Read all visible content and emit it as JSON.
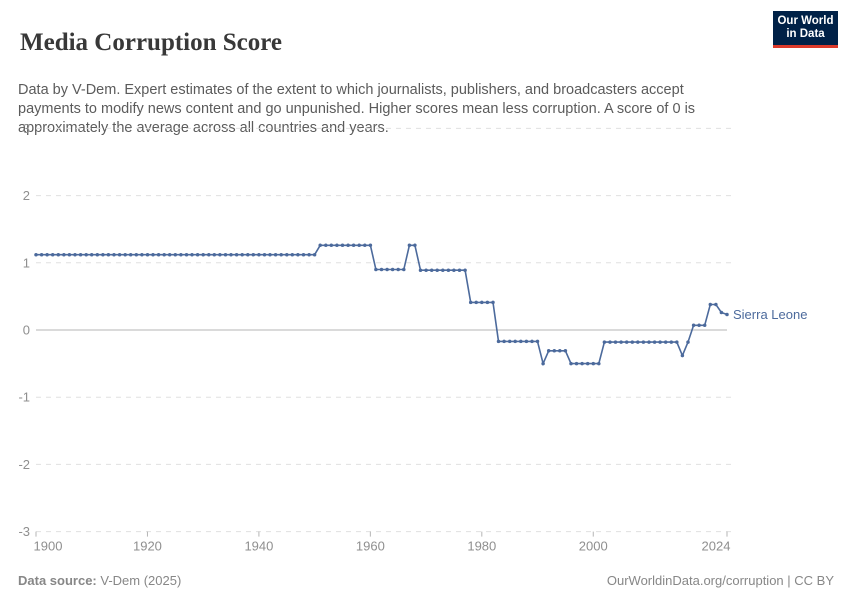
{
  "header": {
    "title": "Media Corruption Score",
    "subtitle": "Data by V-Dem. Expert estimates of the extent to which journalists, publishers, and broadcasters accept payments to modify news content and go unpunished. Higher scores mean less corruption. A score of 0 is approximately the average across all countries and years.",
    "logo_line1": "Our World",
    "logo_line2": "in Data"
  },
  "chart_data": {
    "type": "line",
    "title": "Media Corruption Score",
    "xlabel": "",
    "ylabel": "",
    "ylim": [
      -3,
      3
    ],
    "xlim": [
      1900,
      2024
    ],
    "yticks": [
      3,
      2,
      1,
      0,
      -1,
      -2,
      -3
    ],
    "xticks": [
      1900,
      1920,
      1940,
      1960,
      1980,
      2000,
      2024
    ],
    "grid": "dashed-horizontal",
    "legend_position": "end-of-line",
    "series": [
      {
        "name": "Sierra Leone",
        "start_year": 1900,
        "end_year": 2024,
        "values": [
          1.12,
          1.12,
          1.12,
          1.12,
          1.12,
          1.12,
          1.12,
          1.12,
          1.12,
          1.12,
          1.12,
          1.12,
          1.12,
          1.12,
          1.12,
          1.12,
          1.12,
          1.12,
          1.12,
          1.12,
          1.12,
          1.12,
          1.12,
          1.12,
          1.12,
          1.12,
          1.12,
          1.12,
          1.12,
          1.12,
          1.12,
          1.12,
          1.12,
          1.12,
          1.12,
          1.12,
          1.12,
          1.12,
          1.12,
          1.12,
          1.12,
          1.12,
          1.12,
          1.12,
          1.12,
          1.12,
          1.12,
          1.12,
          1.12,
          1.12,
          1.12,
          1.26,
          1.26,
          1.26,
          1.26,
          1.26,
          1.26,
          1.26,
          1.26,
          1.26,
          1.26,
          0.9,
          0.9,
          0.9,
          0.9,
          0.9,
          0.9,
          1.26,
          1.26,
          0.89,
          0.89,
          0.89,
          0.89,
          0.89,
          0.89,
          0.89,
          0.89,
          0.89,
          0.41,
          0.41,
          0.41,
          0.41,
          0.41,
          -0.17,
          -0.17,
          -0.17,
          -0.17,
          -0.17,
          -0.17,
          -0.17,
          -0.17,
          -0.5,
          -0.31,
          -0.31,
          -0.31,
          -0.31,
          -0.5,
          -0.5,
          -0.5,
          -0.5,
          -0.5,
          -0.5,
          -0.18,
          -0.18,
          -0.18,
          -0.18,
          -0.18,
          -0.18,
          -0.18,
          -0.18,
          -0.18,
          -0.18,
          -0.18,
          -0.18,
          -0.18,
          -0.18,
          -0.38,
          -0.18,
          0.07,
          0.07,
          0.07,
          0.38,
          0.38,
          0.26,
          0.23
        ]
      }
    ]
  },
  "footer": {
    "source_label": "Data source:",
    "source_value": " V-Dem (2025)",
    "attribution": "OurWorldinData.org/corruption | CC BY"
  },
  "colors": {
    "line": "#4c6a9c",
    "grid": "#e0e0e0",
    "zero_line": "#c4c4c4",
    "tick": "#b5b5b5",
    "axis_text": "#8f8f8f",
    "logo_bg": "#002147",
    "logo_red": "#dc3a2b"
  }
}
